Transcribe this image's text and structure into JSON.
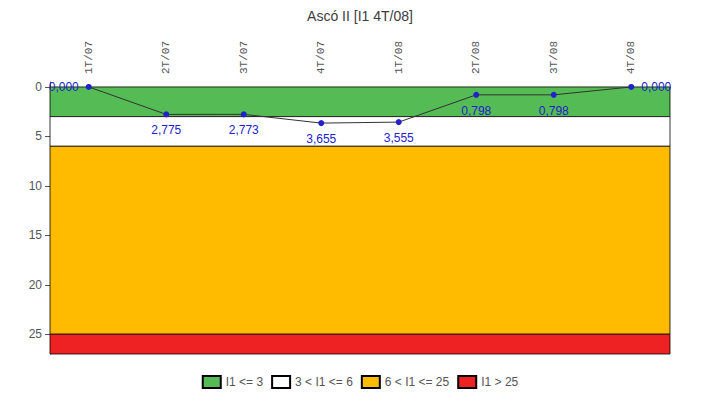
{
  "chart_data": {
    "type": "line",
    "title": "Ascó II [I1 4T/08]",
    "categories": [
      "1T/07",
      "2T/07",
      "3T/07",
      "4T/07",
      "1T/08",
      "2T/08",
      "3T/08",
      "4T/08"
    ],
    "values": [
      0.0,
      2.775,
      2.773,
      3.655,
      3.555,
      0.798,
      0.798,
      0.0
    ],
    "value_labels": [
      "0,000",
      "2,775",
      "2,773",
      "3,655",
      "3,555",
      "0,798",
      "0,798",
      "0,000"
    ],
    "data_labels": true,
    "color": "#333333",
    "colors": [
      "#2222CC",
      "#2222CC",
      "#2222CC",
      "#2222CC",
      "#2222CC",
      "#2222CC",
      "#2222CC",
      "#2222CC"
    ],
    "marker": "circle",
    "ylim": [
      27,
      -0.5
    ],
    "yticks": [
      0,
      5,
      10,
      15,
      20,
      25
    ],
    "grid": false,
    "legend": "bottom",
    "bands": [
      {
        "from": 0,
        "to": 3,
        "color": "#55BB55",
        "label": "I1 <= 3"
      },
      {
        "from": 3,
        "to": 6,
        "color": "#FFFFFF",
        "label": "3 < I1 <= 6"
      },
      {
        "from": 6,
        "to": 25,
        "color": "#FFBB00",
        "label": "6 < I1 <= 25"
      },
      {
        "from": 25,
        "to": 27,
        "color": "#EE2222",
        "label": "I1 > 25"
      }
    ]
  }
}
